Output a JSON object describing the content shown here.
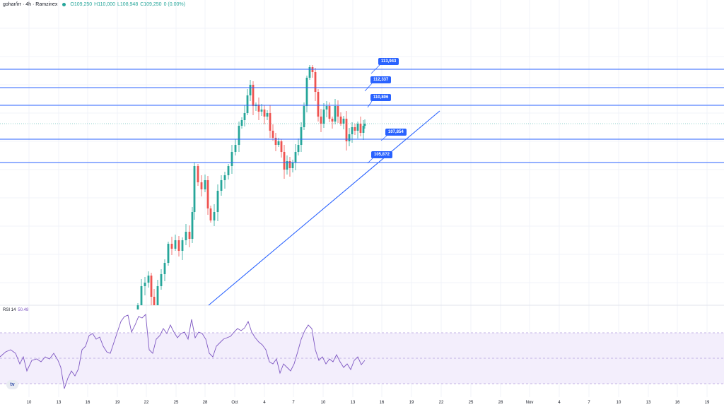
{
  "header": {
    "symbol": "gohar/irr · 4h · Ramzinex",
    "open": "O109,250",
    "high": "H110,000",
    "low": "L108,948",
    "close": "C109,250",
    "change": "0 (0.00%)"
  },
  "rsi": {
    "label": "RSI 14",
    "value": "50.48"
  },
  "levels": [
    "113,943",
    "112,337",
    "110,806",
    "107,854",
    "105,8?2"
  ],
  "x_axis": [
    "10",
    "13",
    "16",
    "19",
    "22",
    "25",
    "28",
    "Oct",
    "4",
    "7",
    "10",
    "13",
    "16",
    "19",
    "22",
    "25",
    "28",
    "Nov",
    "4",
    "7",
    "10",
    "13",
    "16",
    "19"
  ],
  "logo_text": "tv",
  "colors": {
    "up": "#26a69a",
    "down": "#ef5350",
    "level_line": "#2962ff",
    "rsi_line": "#7e57c2",
    "rsi_band": "#f3eefc"
  }
}
